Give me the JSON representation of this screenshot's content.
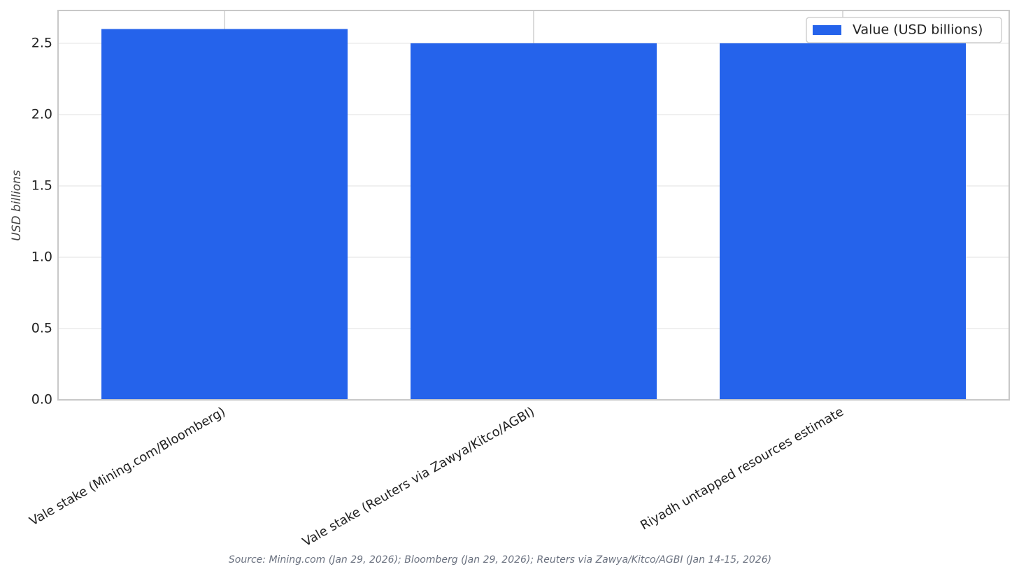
{
  "chart_data": {
    "type": "bar",
    "categories": [
      "Vale stake (Mining.com/Bloomberg)",
      "Vale stake (Reuters via Zawya/Kitco/AGBI)",
      "Riyadh untapped resources estimate"
    ],
    "series": [
      {
        "name": "Value (USD billions)",
        "color": "#2563eb",
        "values": [
          2.6,
          2.5,
          2.5
        ]
      }
    ],
    "ylabel": "USD billions",
    "ylim": [
      0,
      2.73
    ],
    "yticks": [
      {
        "value": 0,
        "label": "0.0"
      },
      0.5,
      {
        "value": 1,
        "label": "1.0"
      },
      1.5,
      {
        "value": 2,
        "label": "2.0"
      },
      2.5
    ],
    "grid": true,
    "legend": "upper right",
    "source": "Source: Mining.com (Jan 29, 2026); Bloomberg (Jan 29, 2026); Reuters via Zawya/Kitco/AGBI (Jan 14-15, 2026)"
  }
}
